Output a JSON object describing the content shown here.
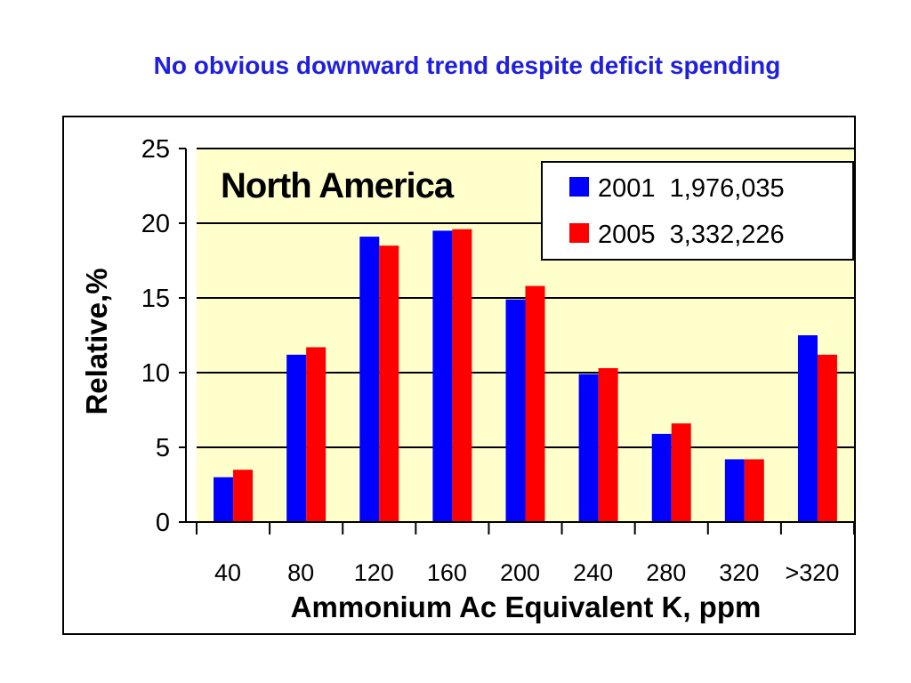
{
  "slide": {
    "title": "No obvious downward trend despite deficit spending"
  },
  "colors": {
    "plot_background": "#ffffcc",
    "series_2001": "#0000ff",
    "series_2005": "#ff0000",
    "title_color": "#1f1fe0"
  },
  "chart_data": {
    "type": "bar",
    "annotation": "North America",
    "categories": [
      "40",
      "80",
      "120",
      "160",
      "200",
      "240",
      "280",
      "320",
      ">320"
    ],
    "series": [
      {
        "name": "2001  1,976,035",
        "color": "#0000ff",
        "values": [
          3.0,
          11.2,
          19.1,
          19.5,
          14.9,
          9.9,
          5.9,
          4.2,
          12.5
        ]
      },
      {
        "name": "2005  3,332,226",
        "color": "#ff0000",
        "values": [
          3.5,
          11.7,
          18.5,
          19.6,
          15.8,
          10.3,
          6.6,
          4.2,
          11.2
        ]
      }
    ],
    "xlabel": "Ammonium Ac Equivalent K, ppm",
    "ylabel": "Relative,%",
    "ylim": [
      0,
      25
    ],
    "yticks": [
      0,
      5,
      10,
      15,
      20,
      25
    ],
    "grid": true,
    "legend_position": "top-right"
  }
}
